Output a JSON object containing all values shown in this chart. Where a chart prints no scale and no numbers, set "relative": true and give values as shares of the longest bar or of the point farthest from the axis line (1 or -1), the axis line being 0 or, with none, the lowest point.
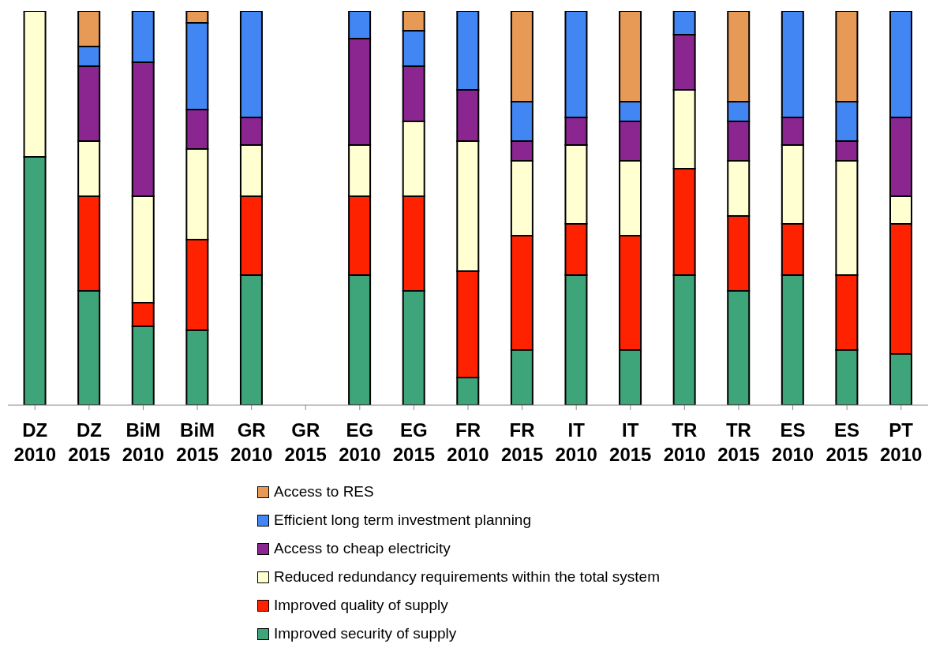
{
  "chart_data": {
    "type": "bar",
    "stacked": true,
    "relative": true,
    "legend": "bottom",
    "categories": [
      "DZ\n2010",
      "DZ\n2015",
      "BiM\n2010",
      "BiM\n2015",
      "GR\n2010",
      "GR\n2015",
      "EG\n2010",
      "EG\n2015",
      "FR\n2010",
      "FR\n2015",
      "IT\n2010",
      "IT\n2015",
      "TR\n2010",
      "TR\n2015",
      "ES\n2010",
      "ES\n2015",
      "PT\n2010"
    ],
    "series": [
      {
        "name": "Improved security of supply",
        "color": "#3ea57a",
        "values": [
          0.63,
          0.29,
          0.2,
          0.19,
          0.33,
          null,
          0.33,
          0.29,
          0.07,
          0.14,
          0.33,
          0.14,
          0.33,
          0.29,
          0.33,
          0.14,
          0.13
        ]
      },
      {
        "name": "Improved quality of supply",
        "color": "#ff2200",
        "values": [
          null,
          0.24,
          0.06,
          0.23,
          0.2,
          null,
          0.2,
          0.24,
          0.27,
          0.29,
          0.13,
          0.29,
          0.27,
          0.19,
          0.13,
          0.19,
          0.33
        ]
      },
      {
        "name": "Reduced redundancy requirements within the total system",
        "color": "#ffffd2",
        "values": [
          0.37,
          0.14,
          0.27,
          0.23,
          0.13,
          null,
          0.13,
          0.19,
          0.33,
          0.19,
          0.2,
          0.19,
          0.2,
          0.14,
          0.2,
          0.29,
          0.07
        ]
      },
      {
        "name": "Access to cheap electricity",
        "color": "#8b2590",
        "values": [
          null,
          0.19,
          0.34,
          0.1,
          0.07,
          null,
          0.27,
          0.14,
          0.13,
          0.05,
          0.07,
          0.1,
          0.14,
          0.1,
          0.07,
          0.05,
          0.2
        ]
      },
      {
        "name": "Efficient long term investment planning",
        "color": "#4286f4",
        "values": [
          null,
          0.05,
          0.13,
          0.22,
          0.27,
          null,
          0.07,
          0.09,
          0.2,
          0.1,
          0.27,
          0.05,
          0.06,
          0.05,
          0.27,
          0.1,
          0.27
        ]
      },
      {
        "name": "Access to RES",
        "color": "#e69a56",
        "values": [
          null,
          0.09,
          null,
          0.03,
          null,
          null,
          null,
          0.05,
          null,
          0.23,
          null,
          0.23,
          null,
          0.23,
          null,
          0.23,
          null
        ]
      }
    ]
  }
}
